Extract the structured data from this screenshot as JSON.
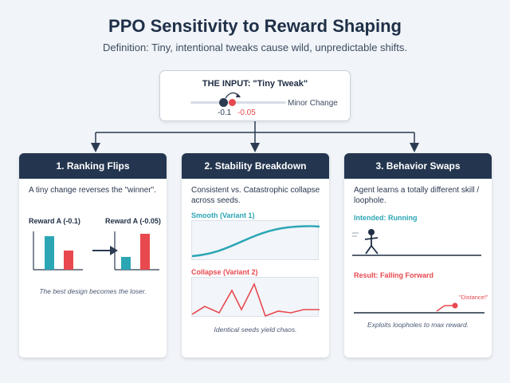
{
  "title": "PPO Sensitivity to Reward Shaping",
  "subtitle": "Definition: Tiny, intentional tweaks cause wild, unpredictable shifts.",
  "input": {
    "title": "THE INPUT: \"Tiny Tweak\"",
    "value_a": "-0.1",
    "value_b": "-0.05",
    "slider_label": "Minor Change"
  },
  "cards": [
    {
      "title": "1. Ranking Flips",
      "description": "A tiny change reverses the \"winner\".",
      "left_label": "Reward A (-0.1)",
      "right_label": "Reward A (-0.05)",
      "caption": "The best design becomes the loser."
    },
    {
      "title": "2. Stability Breakdown",
      "description": "Consistent vs. Catastrophic collapse across seeds.",
      "smooth_label": "Smooth (Variant 1)",
      "collapse_label": "Collapse (Variant 2)",
      "caption": "Identical seeds yield chaos."
    },
    {
      "title": "3. Behavior Swaps",
      "description": "Agent learns a totally different skill / loophole.",
      "intended_label": "Intended: Running",
      "result_label": "Result: Falling Forward",
      "distance_note": "\"Distance!\"",
      "caption": "Exploits loopholes to max reward."
    }
  ],
  "colors": {
    "teal": "#2ba6b5",
    "red": "#e8494f",
    "navy": "#24364f"
  }
}
